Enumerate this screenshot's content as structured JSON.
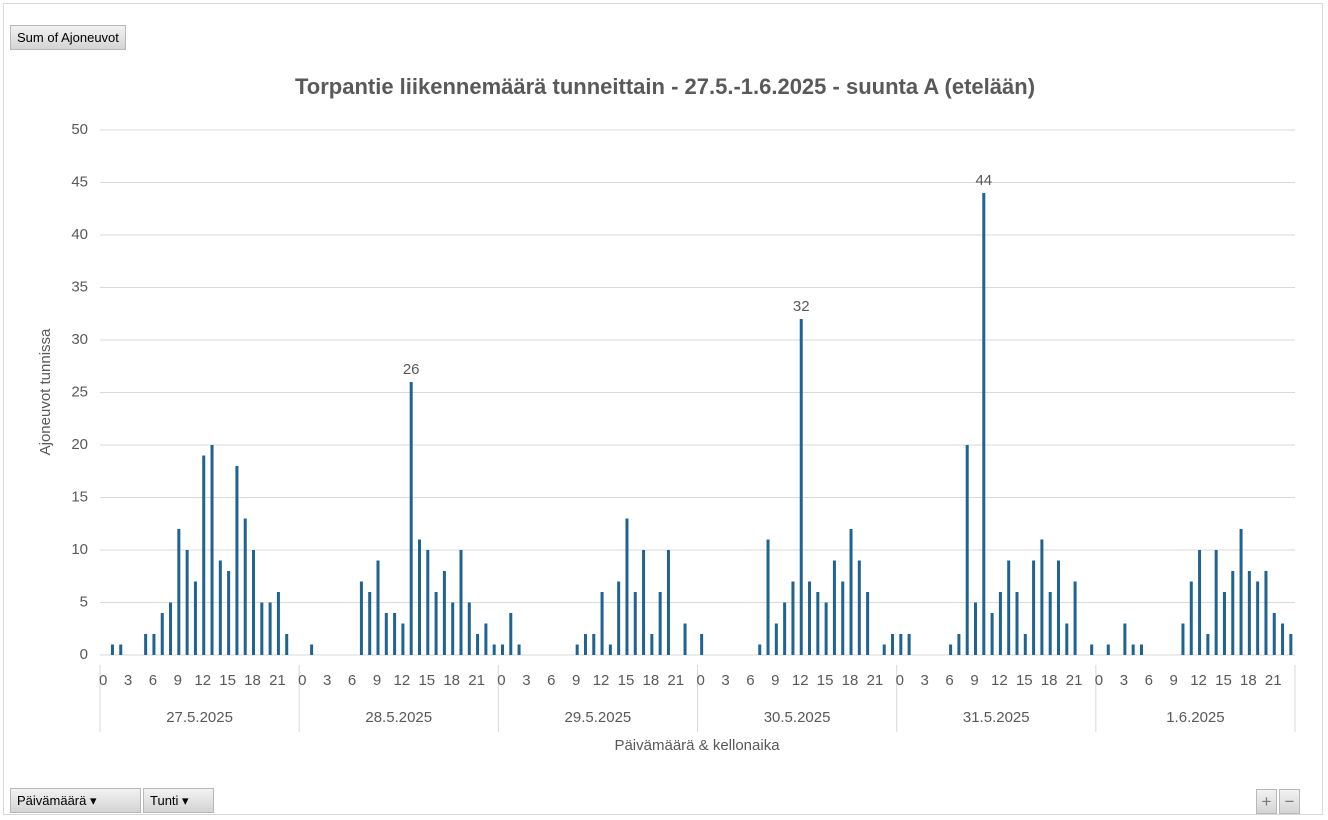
{
  "ui": {
    "field_button": "Sum of Ajoneuvot",
    "filter_buttons": [
      "Päivämäärä",
      "Tunti"
    ],
    "zoom_in": "+",
    "zoom_out": "−"
  },
  "chart_data": {
    "type": "bar",
    "title": "Torpantie liikennemäärä tunneittain - 27.5.-1.6.2025 - suunta A (etelään)",
    "y_label": "Ajoneuvot tunnissa",
    "x_label": "Päivämäärä & kellonaika",
    "color": "#1f6390",
    "grid": true,
    "ylim": [
      0,
      50
    ],
    "yticks": [
      0,
      5,
      10,
      15,
      20,
      25,
      30,
      35,
      40,
      45,
      50
    ],
    "hours": [
      0,
      null,
      null,
      3,
      null,
      null,
      6,
      null,
      null,
      9,
      null,
      null,
      12,
      null,
      null,
      15,
      null,
      null,
      18,
      null,
      null,
      21,
      null,
      null
    ],
    "groups": [
      {
        "name": "27.5.2025",
        "values": [
          0,
          1,
          1,
          0,
          0,
          2,
          2,
          4,
          5,
          12,
          10,
          7,
          19,
          20,
          9,
          8,
          18,
          13,
          10,
          5,
          5,
          6,
          2,
          0
        ]
      },
      {
        "name": "28.5.2025",
        "values": [
          0,
          1,
          0,
          0,
          0,
          0,
          0,
          7,
          6,
          9,
          4,
          4,
          3,
          26,
          11,
          10,
          6,
          8,
          5,
          10,
          5,
          2,
          3,
          1
        ],
        "value_labels": [
          null,
          null,
          null,
          null,
          null,
          null,
          null,
          null,
          null,
          null,
          null,
          null,
          null,
          "26",
          null,
          null,
          null,
          null,
          null,
          null,
          null,
          null,
          null,
          null
        ]
      },
      {
        "name": "29.5.2025",
        "values": [
          1,
          4,
          1,
          0,
          0,
          0,
          0,
          0,
          0,
          1,
          2,
          2,
          6,
          1,
          7,
          13,
          6,
          10,
          2,
          6,
          10,
          0,
          3,
          0
        ]
      },
      {
        "name": "30.5.2025",
        "values": [
          2,
          0,
          0,
          0,
          0,
          0,
          0,
          1,
          11,
          3,
          5,
          7,
          32,
          7,
          6,
          5,
          9,
          7,
          12,
          9,
          6,
          0,
          1,
          2
        ],
        "value_labels": [
          null,
          null,
          null,
          null,
          null,
          null,
          null,
          null,
          null,
          null,
          null,
          null,
          "32",
          null,
          null,
          null,
          null,
          null,
          null,
          null,
          null,
          null,
          null,
          null
        ]
      },
      {
        "name": "31.5.2025",
        "values": [
          2,
          2,
          0,
          0,
          0,
          0,
          1,
          2,
          20,
          5,
          44,
          4,
          6,
          9,
          6,
          2,
          9,
          11,
          6,
          9,
          3,
          7,
          0,
          1
        ],
        "value_labels": [
          null,
          null,
          null,
          null,
          null,
          null,
          null,
          null,
          null,
          null,
          "44",
          null,
          null,
          null,
          null,
          null,
          null,
          null,
          null,
          null,
          null,
          null,
          null,
          null
        ]
      },
      {
        "name": "1.6.2025",
        "values": [
          0,
          1,
          0,
          3,
          1,
          1,
          0,
          0,
          0,
          0,
          3,
          7,
          10,
          2,
          10,
          6,
          8,
          12,
          8,
          7,
          8,
          4,
          3,
          2
        ]
      }
    ]
  }
}
